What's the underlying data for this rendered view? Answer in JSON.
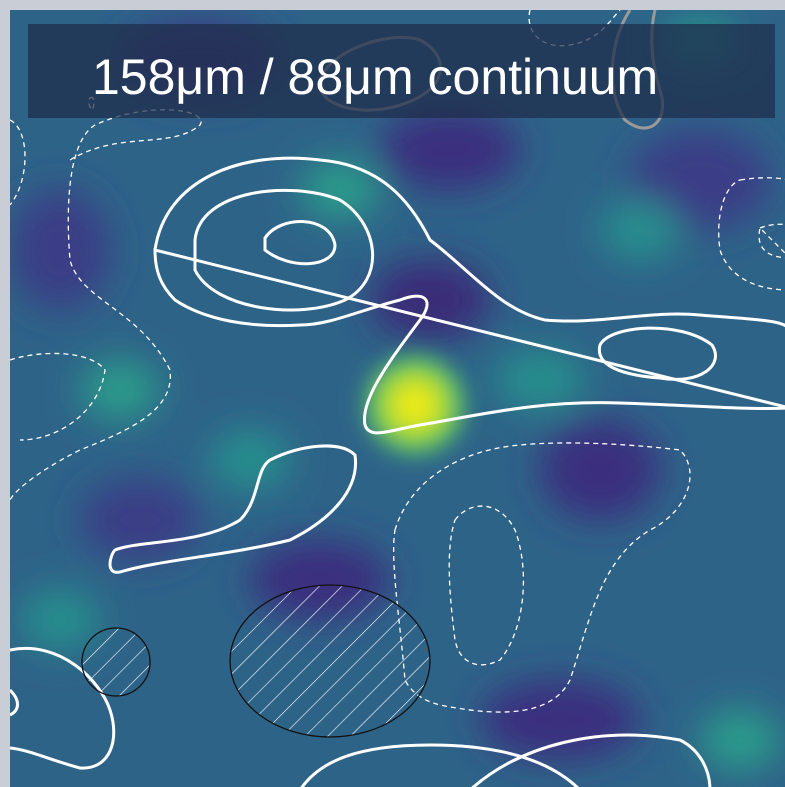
{
  "title": "158μm / 88μm continuum"
}
